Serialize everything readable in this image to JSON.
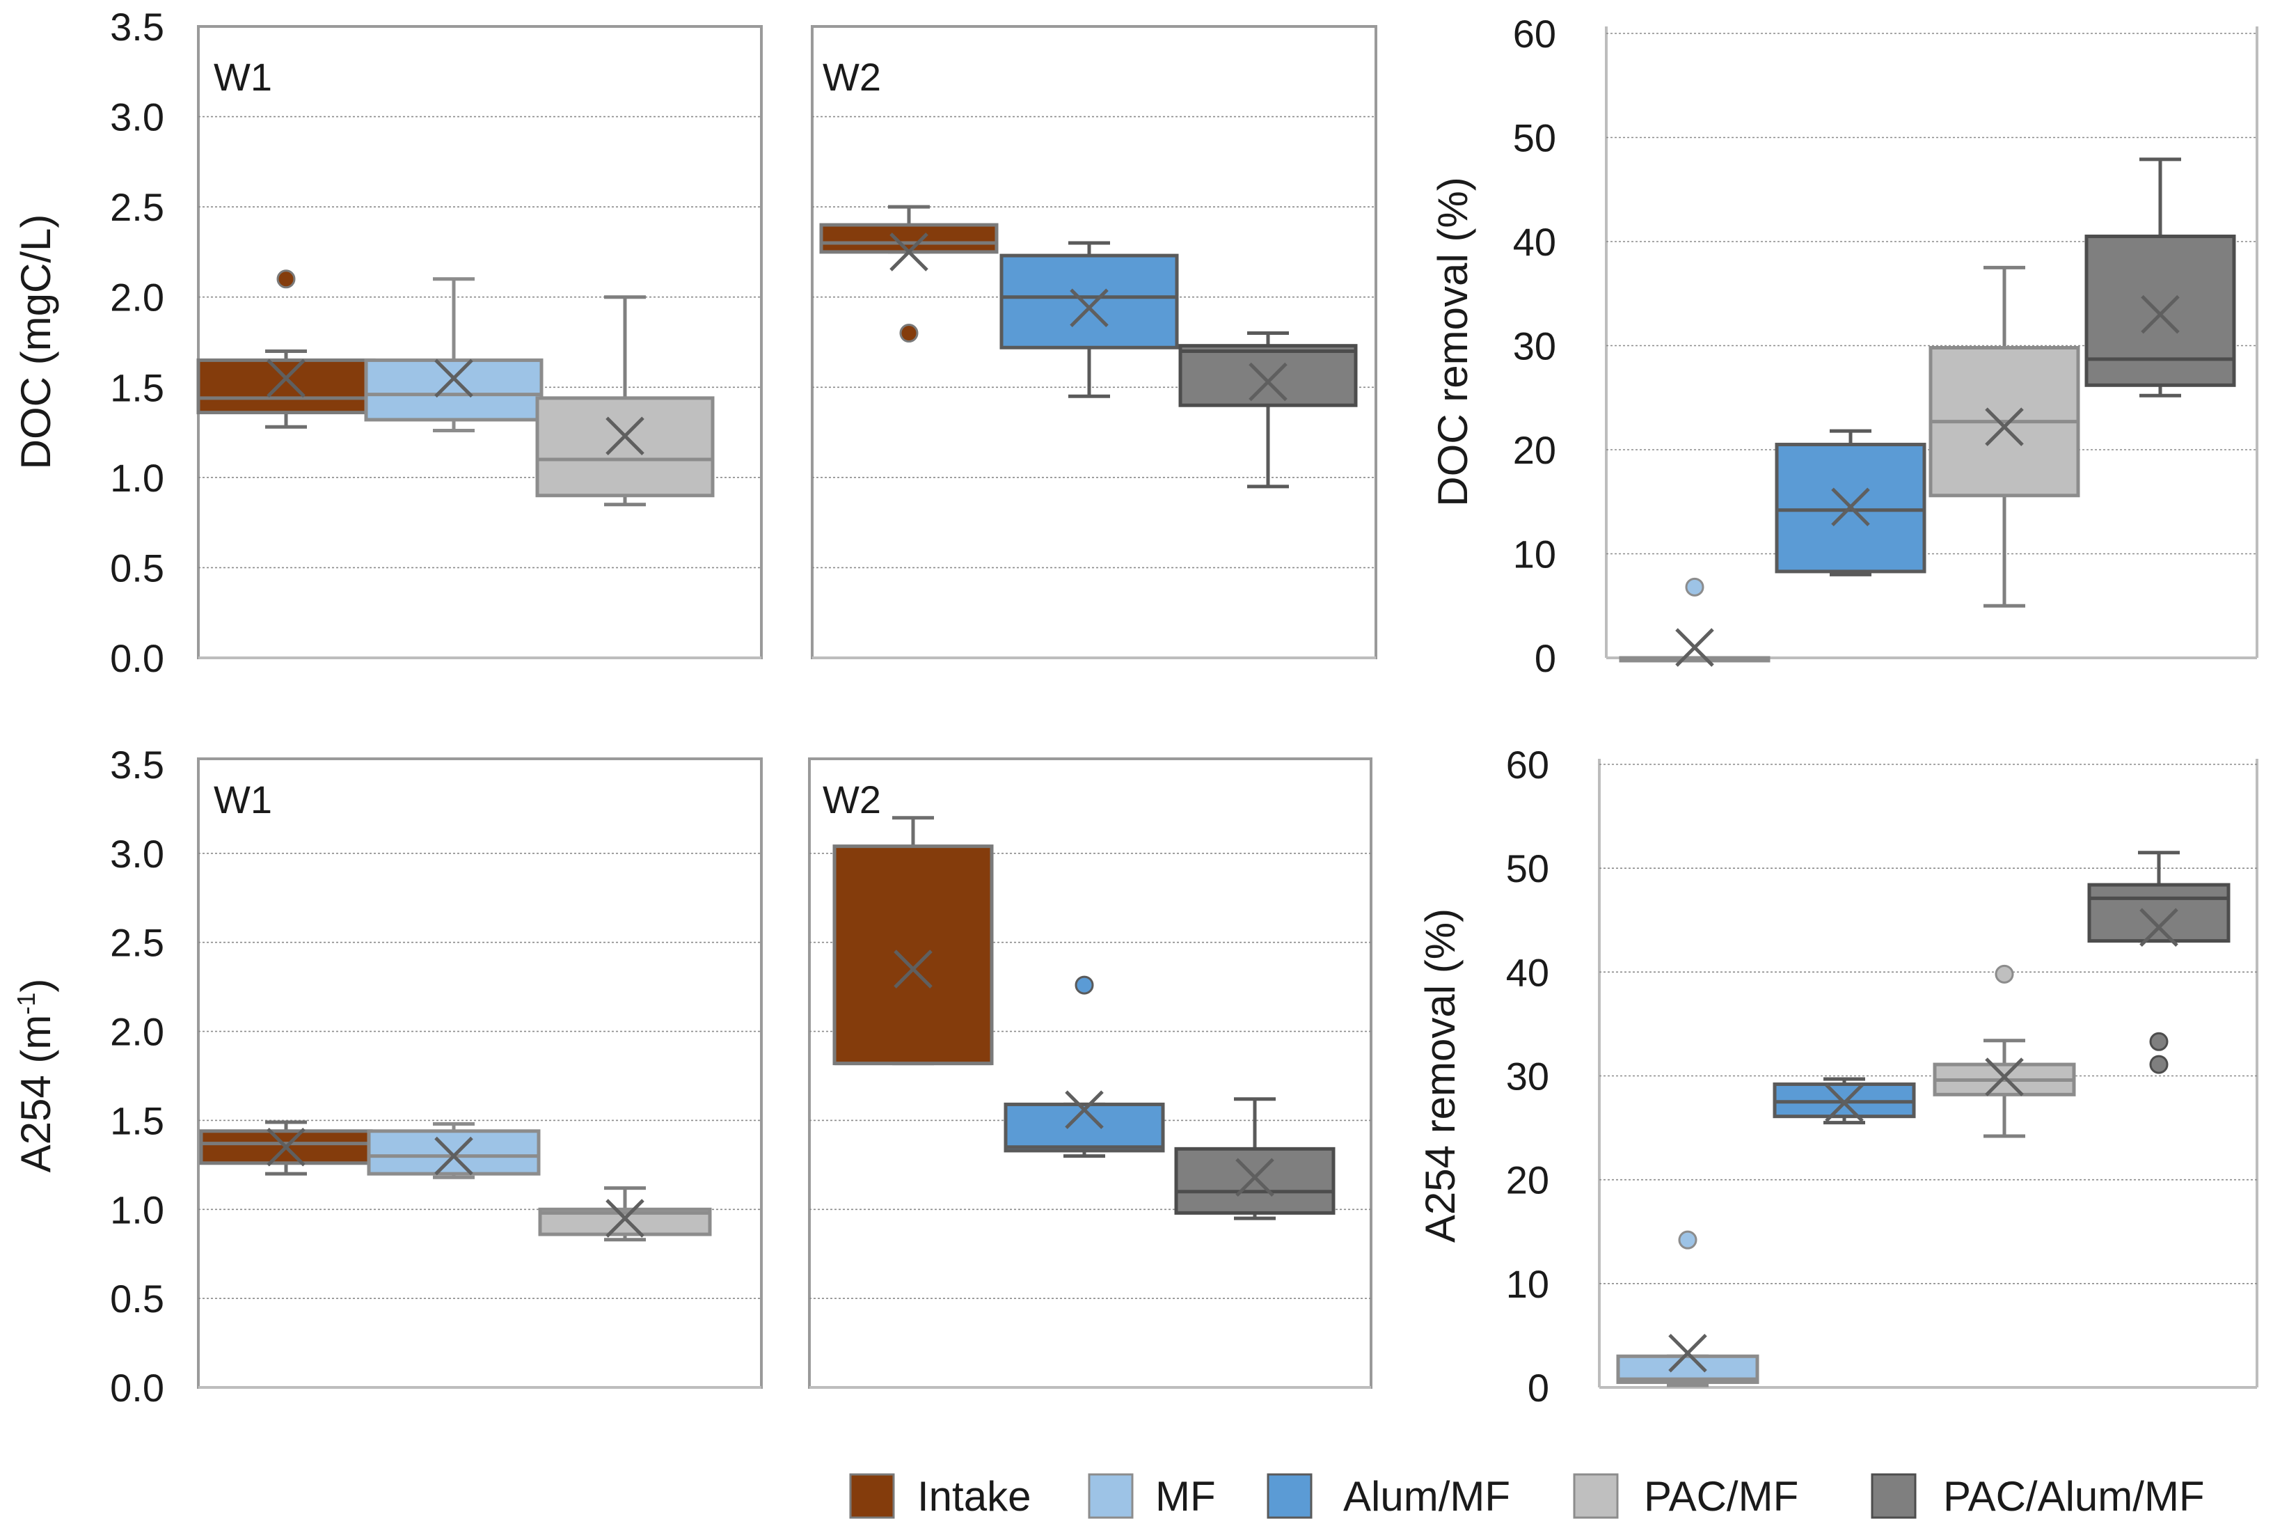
{
  "legend": [
    {
      "label": "Intake",
      "color": "#843C0C"
    },
    {
      "label": "MF",
      "color": "#9DC3E6"
    },
    {
      "label": "Alum/MF",
      "color": "#5B9BD5"
    },
    {
      "label": "PAC/MF",
      "color": "#BFBFBF"
    },
    {
      "label": "PAC/Alum/MF",
      "color": "#7F7F7F"
    }
  ],
  "series_styles": {
    "Intake": {
      "fill": "#843C0C",
      "stroke": "#7a7a7a",
      "whisker": "#6e6e6e"
    },
    "MF": {
      "fill": "#9DC3E6",
      "stroke": "#8c8c8c",
      "whisker": "#8c8c8c"
    },
    "Alum/MF": {
      "fill": "#5B9BD5",
      "stroke": "#5a5a5a",
      "whisker": "#5a5a5a"
    },
    "PAC/MF": {
      "fill": "#BFBFBF",
      "stroke": "#8c8c8c",
      "whisker": "#7f7f7f"
    },
    "PAC/Alum/MF": {
      "fill": "#7F7F7F",
      "stroke": "#4d4d4d",
      "whisker": "#5a5a5a"
    }
  },
  "chart_data": [
    {
      "type": "box",
      "panel_label": "W1",
      "ylabel": "DOC (mgC/L)",
      "ylim": [
        0,
        3.5
      ],
      "yticks": [
        "0.0",
        "0.5",
        "1.0",
        "1.5",
        "2.0",
        "2.5",
        "3.0",
        "3.5"
      ],
      "grid": true,
      "boxes": [
        {
          "series": "Intake",
          "whisker_low": 1.28,
          "q1": 1.36,
          "median": 1.44,
          "q3": 1.65,
          "whisker_high": 1.7,
          "mean": 1.55,
          "outliers": [
            2.1
          ]
        },
        {
          "series": "MF",
          "whisker_low": 1.26,
          "q1": 1.32,
          "median": 1.46,
          "q3": 1.65,
          "whisker_high": 2.1,
          "mean": 1.55,
          "outliers": []
        },
        {
          "series": "PAC/MF",
          "whisker_low": 0.85,
          "q1": 0.9,
          "median": 1.1,
          "q3": 1.44,
          "whisker_high": 2.0,
          "mean": 1.23,
          "outliers": []
        }
      ]
    },
    {
      "type": "box",
      "panel_label": "W2",
      "ylabel": "",
      "ylim": [
        0,
        3.5
      ],
      "yticks": [],
      "grid": true,
      "boxes": [
        {
          "series": "Intake",
          "whisker_low": 2.25,
          "q1": 2.25,
          "median": 2.3,
          "q3": 2.4,
          "whisker_high": 2.5,
          "mean": 2.25,
          "outliers": [
            1.8
          ]
        },
        {
          "series": "Alum/MF",
          "whisker_low": 1.45,
          "q1": 1.72,
          "median": 2.0,
          "q3": 2.23,
          "whisker_high": 2.3,
          "mean": 1.94,
          "outliers": []
        },
        {
          "series": "PAC/Alum/MF",
          "whisker_low": 0.95,
          "q1": 1.4,
          "median": 1.7,
          "q3": 1.73,
          "whisker_high": 1.8,
          "mean": 1.53,
          "outliers": []
        }
      ]
    },
    {
      "type": "box",
      "panel_label": "",
      "ylabel": "DOC removal (%)",
      "ylim": [
        0,
        60
      ],
      "yticks": [
        "0",
        "10",
        "20",
        "30",
        "40",
        "50",
        "60"
      ],
      "grid": true,
      "boxes": [
        {
          "series": "MF",
          "whisker_low": 0,
          "q1": 0,
          "median": 0,
          "q3": 0,
          "whisker_high": 0,
          "mean": 1,
          "outliers": [
            6.8
          ]
        },
        {
          "series": "Alum/MF",
          "whisker_low": 8,
          "q1": 8.3,
          "median": 14.2,
          "q3": 20.5,
          "whisker_high": 21.8,
          "mean": 14.5,
          "outliers": []
        },
        {
          "series": "PAC/MF",
          "whisker_low": 5,
          "q1": 15.6,
          "median": 22.7,
          "q3": 29.8,
          "whisker_high": 37.5,
          "mean": 22.2,
          "outliers": []
        },
        {
          "series": "PAC/Alum/MF",
          "whisker_low": 25.2,
          "q1": 26.2,
          "median": 28.7,
          "q3": 40.5,
          "whisker_high": 47.9,
          "mean": 33,
          "outliers": []
        }
      ]
    },
    {
      "type": "box",
      "panel_label": "W1",
      "ylabel": "A254 (m-1)",
      "ylim": [
        0,
        3.5
      ],
      "yticks": [
        "0.0",
        "0.5",
        "1.0",
        "1.5",
        "2.0",
        "2.5",
        "3.0",
        "3.5"
      ],
      "grid": true,
      "boxes": [
        {
          "series": "Intake",
          "whisker_low": 1.2,
          "q1": 1.26,
          "median": 1.37,
          "q3": 1.44,
          "whisker_high": 1.49,
          "mean": 1.35,
          "outliers": []
        },
        {
          "series": "MF",
          "whisker_low": 1.18,
          "q1": 1.2,
          "median": 1.3,
          "q3": 1.44,
          "whisker_high": 1.48,
          "mean": 1.3,
          "outliers": []
        },
        {
          "series": "PAC/MF",
          "whisker_low": 0.83,
          "q1": 0.86,
          "median": 0.98,
          "q3": 1.0,
          "whisker_high": 1.12,
          "mean": 0.95,
          "outliers": []
        }
      ]
    },
    {
      "type": "box",
      "panel_label": "W2",
      "ylabel": "",
      "ylim": [
        0,
        3.5
      ],
      "yticks": [],
      "grid": true,
      "boxes": [
        {
          "series": "Intake",
          "whisker_low": 1.82,
          "q1": 1.82,
          "median": 1.82,
          "q3": 3.04,
          "whisker_high": 3.2,
          "mean": 2.35,
          "outliers": []
        },
        {
          "series": "Alum/MF",
          "whisker_low": 1.3,
          "q1": 1.33,
          "median": 1.35,
          "q3": 1.59,
          "whisker_high": 1.59,
          "mean": 1.56,
          "outliers": [
            2.26
          ]
        },
        {
          "series": "PAC/Alum/MF",
          "whisker_low": 0.95,
          "q1": 0.98,
          "median": 1.1,
          "q3": 1.34,
          "whisker_high": 1.62,
          "mean": 1.18,
          "outliers": []
        }
      ]
    },
    {
      "type": "box",
      "panel_label": "",
      "ylabel": "A254 removal (%)",
      "ylim": [
        0,
        60
      ],
      "yticks": [
        "0",
        "10",
        "20",
        "30",
        "40",
        "50",
        "60"
      ],
      "grid": true,
      "boxes": [
        {
          "series": "MF",
          "whisker_low": 0.2,
          "q1": 0.5,
          "median": 0.8,
          "q3": 3,
          "whisker_high": 3,
          "mean": 3.3,
          "outliers": [
            14.2
          ]
        },
        {
          "series": "Alum/MF",
          "whisker_low": 25.5,
          "q1": 26.1,
          "median": 27.5,
          "q3": 29.2,
          "whisker_high": 29.7,
          "mean": 27.4,
          "outliers": []
        },
        {
          "series": "PAC/MF",
          "whisker_low": 24.2,
          "q1": 28.2,
          "median": 29.6,
          "q3": 31.1,
          "whisker_high": 33.4,
          "mean": 29.9,
          "outliers": [
            39.8
          ]
        },
        {
          "series": "PAC/Alum/MF",
          "whisker_low": 43,
          "q1": 43,
          "median": 47.1,
          "q3": 48.4,
          "whisker_high": 51.5,
          "mean": 44.3,
          "outliers": [
            33.3,
            31.1
          ]
        }
      ]
    }
  ]
}
